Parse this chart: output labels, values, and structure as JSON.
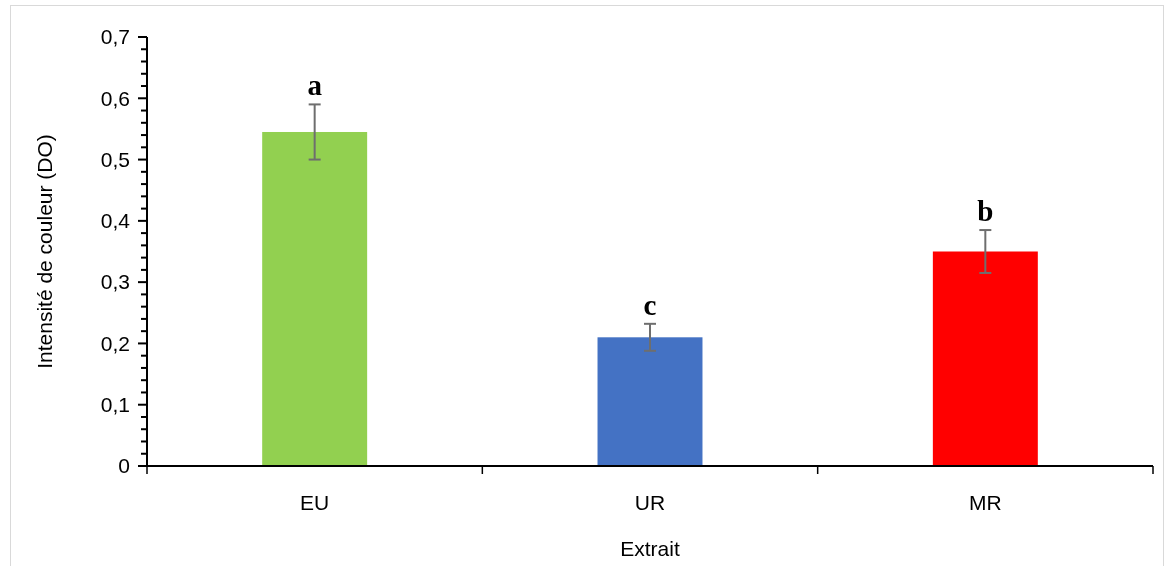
{
  "chart_data": {
    "type": "bar",
    "xlabel": "Extrait",
    "ylabel": "Intensité de couleur (DO)",
    "categories": [
      "EU",
      "UR",
      "MR"
    ],
    "values": [
      0.545,
      0.21,
      0.35
    ],
    "colors": [
      "#92d050",
      "#4472c4",
      "#ff0000"
    ],
    "errors": [
      0.045,
      0.022,
      0.035
    ],
    "ylim": [
      0,
      0.7
    ],
    "yticks": [
      0,
      {
        "value": 0.02,
        "label": null
      },
      {
        "value": 0.04,
        "label": null
      },
      {
        "value": 0.06,
        "label": null
      },
      {
        "value": 0.08,
        "label": null
      },
      {
        "value": 0.1,
        "label": "0,1"
      },
      {
        "value": 0.12,
        "label": null
      },
      {
        "value": 0.14,
        "label": null
      },
      {
        "value": 0.16,
        "label": null
      },
      {
        "value": 0.18,
        "label": null
      },
      {
        "value": 0.2,
        "label": "0,2"
      },
      {
        "value": 0.22,
        "label": null
      },
      {
        "value": 0.24,
        "label": null
      },
      {
        "value": 0.26,
        "label": null
      },
      {
        "value": 0.28,
        "label": null
      },
      {
        "value": 0.3,
        "label": "0,3"
      },
      {
        "value": 0.32,
        "label": null
      },
      {
        "value": 0.34,
        "label": null
      },
      {
        "value": 0.36,
        "label": null
      },
      {
        "value": 0.38,
        "label": null
      },
      {
        "value": 0.4,
        "label": "0,4"
      },
      {
        "value": 0.42,
        "label": null
      },
      {
        "value": 0.44,
        "label": null
      },
      {
        "value": 0.46,
        "label": null
      },
      {
        "value": 0.48,
        "label": null
      },
      {
        "value": 0.5,
        "label": "0,5"
      },
      {
        "value": 0.52,
        "label": null
      },
      {
        "value": 0.54,
        "label": null
      },
      {
        "value": 0.56,
        "label": null
      },
      {
        "value": 0.58,
        "label": null
      },
      {
        "value": 0.6,
        "label": "0,6"
      },
      {
        "value": 0.62,
        "label": null
      },
      {
        "value": 0.64,
        "label": null
      },
      {
        "value": 0.66,
        "label": null
      },
      {
        "value": 0.68,
        "label": null
      },
      {
        "value": 0.7,
        "label": "0,7"
      }
    ],
    "annotations": [
      "a",
      "c",
      "b"
    ]
  }
}
